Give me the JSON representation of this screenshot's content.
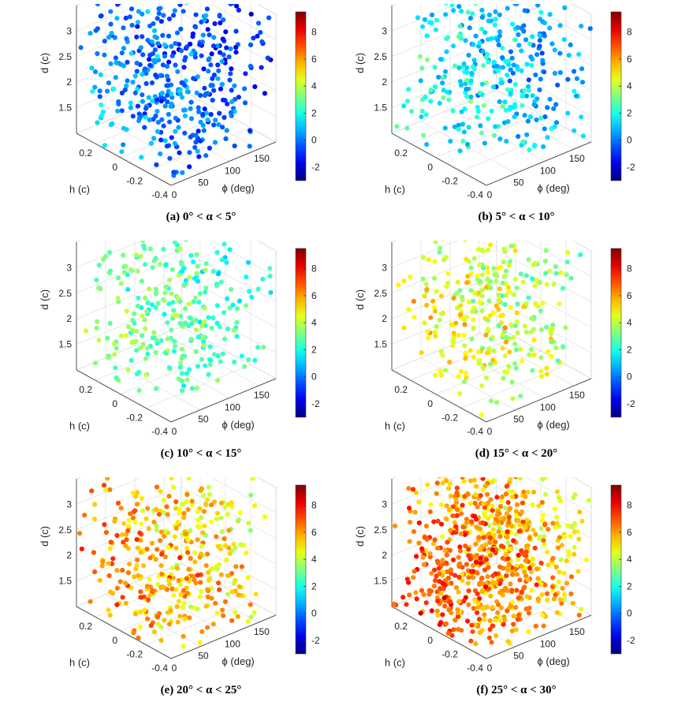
{
  "chart_data": [
    {
      "type": "scatter",
      "panel_label": "(a)",
      "range_text": "0° < α < 5°",
      "xlabel": "ϕ (deg)",
      "ylabel": "d (c)",
      "zlabel": "h (c)",
      "phi_ticks": [
        "0",
        "50",
        "100",
        "150"
      ],
      "h_ticks": [
        "0.2",
        "0",
        "-0.2",
        "-0.4"
      ],
      "d_ticks": [
        "1.5",
        "2",
        "2.5",
        "3"
      ],
      "colorbar_ticks": [
        "-2",
        "0",
        "2",
        "4",
        "6",
        "8"
      ],
      "color_range": [
        -3,
        9.5
      ],
      "points_summary": {
        "count": 420,
        "value_min": -2.5,
        "value_max": 2.2,
        "value_mean": 0.3
      }
    },
    {
      "type": "scatter",
      "panel_label": "(b)",
      "range_text": "5° < α < 10°",
      "xlabel": "ϕ (deg)",
      "ylabel": "d (c)",
      "zlabel": "h (c)",
      "phi_ticks": [
        "0",
        "50",
        "100",
        "150"
      ],
      "h_ticks": [
        "0.2",
        "0",
        "-0.2",
        "-0.4"
      ],
      "d_ticks": [
        "1.5",
        "2",
        "2.5",
        "3"
      ],
      "colorbar_ticks": [
        "-2",
        "0",
        "2",
        "4",
        "6",
        "8"
      ],
      "color_range": [
        -3,
        9.5
      ],
      "points_summary": {
        "count": 330,
        "value_min": -1.5,
        "value_max": 4.0,
        "value_mean": 1.6
      }
    },
    {
      "type": "scatter",
      "panel_label": "(c)",
      "range_text": "10° < α < 15°",
      "xlabel": "ϕ (deg)",
      "ylabel": "d (c)",
      "zlabel": "h (c)",
      "phi_ticks": [
        "0",
        "50",
        "100",
        "150"
      ],
      "h_ticks": [
        "0.2",
        "0",
        "-0.2",
        "-0.4"
      ],
      "d_ticks": [
        "1.5",
        "2",
        "2.5",
        "3"
      ],
      "colorbar_ticks": [
        "-2",
        "0",
        "2",
        "4",
        "6",
        "8"
      ],
      "color_range": [
        -3,
        9.5
      ],
      "points_summary": {
        "count": 300,
        "value_min": 0.5,
        "value_max": 5.0,
        "value_mean": 2.6
      }
    },
    {
      "type": "scatter",
      "panel_label": "(d)",
      "range_text": "15° < α < 20°",
      "xlabel": "ϕ (deg)",
      "ylabel": "d (c)",
      "zlabel": "h (c)",
      "phi_ticks": [
        "0",
        "50",
        "100",
        "150"
      ],
      "h_ticks": [
        "0.2",
        "0",
        "-0.2",
        "-0.4"
      ],
      "d_ticks": [
        "1.5",
        "2",
        "2.5",
        "3"
      ],
      "colorbar_ticks": [
        "-2",
        "0",
        "2",
        "4",
        "6",
        "8"
      ],
      "color_range": [
        -3,
        9.5
      ],
      "points_summary": {
        "count": 330,
        "value_min": 1.5,
        "value_max": 7.0,
        "value_mean": 3.8
      }
    },
    {
      "type": "scatter",
      "panel_label": "(e)",
      "range_text": "20° < α < 25°",
      "xlabel": "ϕ (deg)",
      "ylabel": "d (c)",
      "zlabel": "h (c)",
      "phi_ticks": [
        "0",
        "50",
        "100",
        "150"
      ],
      "h_ticks": [
        "0.2",
        "0",
        "-0.2",
        "-0.4"
      ],
      "d_ticks": [
        "1.5",
        "2",
        "2.5",
        "3"
      ],
      "colorbar_ticks": [
        "-2",
        "0",
        "2",
        "4",
        "6",
        "8"
      ],
      "color_range": [
        -3,
        9.5
      ],
      "points_summary": {
        "count": 400,
        "value_min": 2.5,
        "value_max": 8.5,
        "value_mean": 5.2
      }
    },
    {
      "type": "scatter",
      "panel_label": "(f)",
      "range_text": "25° < α < 30°",
      "xlabel": "ϕ (deg)",
      "ylabel": "d (c)",
      "zlabel": "h (c)",
      "phi_ticks": [
        "0",
        "50",
        "100",
        "150"
      ],
      "h_ticks": [
        "0.2",
        "0",
        "-0.2",
        "-0.4"
      ],
      "d_ticks": [
        "1.5",
        "2",
        "2.5",
        "3"
      ],
      "colorbar_ticks": [
        "-2",
        "0",
        "2",
        "4",
        "6",
        "8"
      ],
      "color_range": [
        -3,
        9.5
      ],
      "points_summary": {
        "count": 750,
        "value_min": 3.0,
        "value_max": 9.0,
        "value_mean": 6.4
      }
    }
  ]
}
